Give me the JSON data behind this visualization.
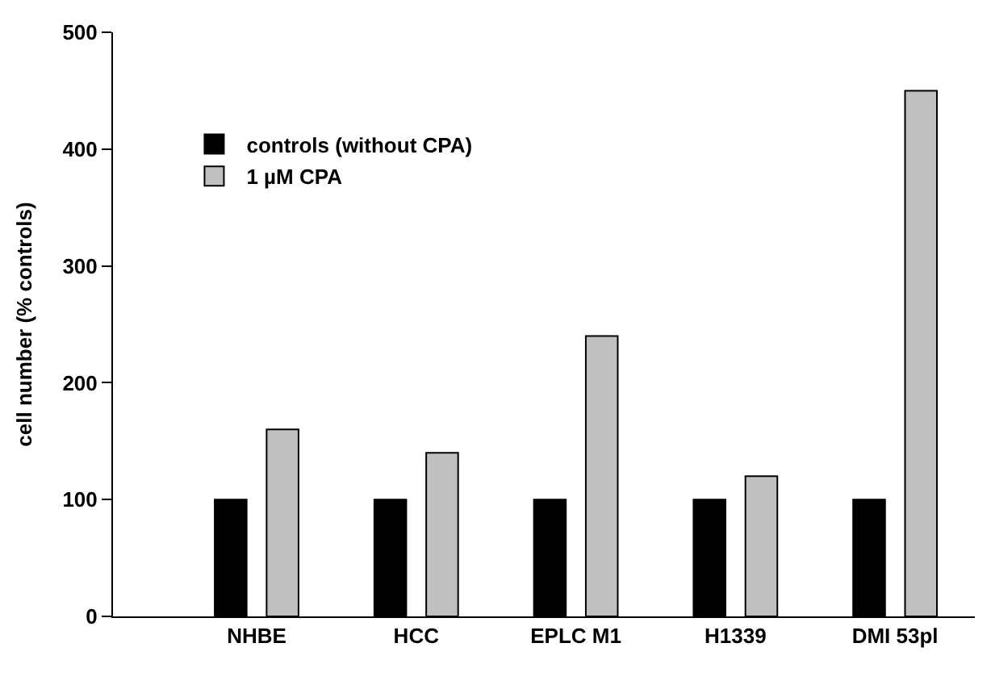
{
  "chart_data": {
    "type": "bar",
    "ylabel": "cell number (% controls)",
    "categories": [
      "NHBE",
      "HCC",
      "EPLC M1",
      "H1339",
      "DMI 53pl"
    ],
    "series": [
      {
        "name": "controls (without CPA)",
        "color": "#000000",
        "values": [
          100,
          100,
          100,
          100,
          100
        ]
      },
      {
        "name": "1 µM CPA",
        "color": "#c0c0c0",
        "values": [
          160,
          140,
          240,
          120,
          450
        ]
      }
    ],
    "ylim": [
      0,
      500
    ],
    "yticks": [
      0,
      100,
      200,
      300,
      400,
      500
    ],
    "legend": "top left"
  }
}
